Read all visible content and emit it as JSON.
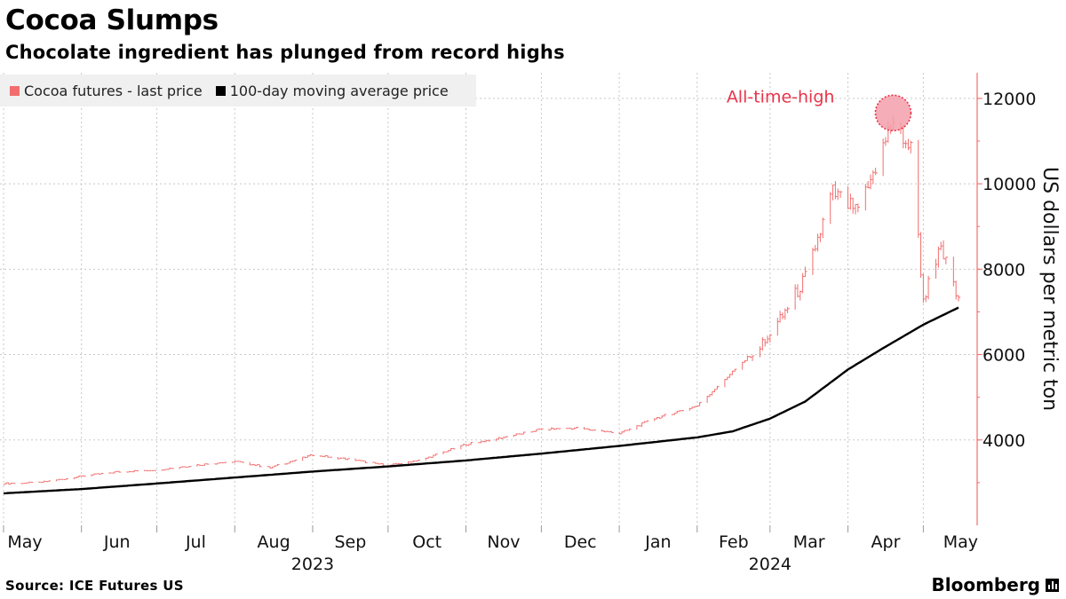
{
  "title": "Cocoa Slumps",
  "subtitle": "Chocolate ingredient has plunged from record highs",
  "legend": {
    "series1": "Cocoa futures - last price",
    "series2": "100-day moving average price"
  },
  "source": "Source: ICE Futures US",
  "brand": "Bloomberg",
  "colors": {
    "price": "#f26d6d",
    "average": "#000000",
    "annotation": "#e8334a",
    "grid": "#c8c8c8"
  },
  "chart_data": {
    "type": "line",
    "title": "Cocoa Slumps",
    "subtitle": "Chocolate ingredient has plunged from record highs",
    "xlabel": "",
    "ylabel": "US dollars per metric ton",
    "y_axis_position": "right",
    "ylim": [
      2000,
      12600
    ],
    "yticks": [
      4000,
      6000,
      8000,
      10000,
      12000
    ],
    "x_range": [
      "2023-05-01",
      "2024-05-15"
    ],
    "month_ticks": [
      {
        "label": "May",
        "date": "2023-05-01"
      },
      {
        "label": "Jun",
        "date": "2023-06-01"
      },
      {
        "label": "Jul",
        "date": "2023-07-01"
      },
      {
        "label": "Aug",
        "date": "2023-08-01"
      },
      {
        "label": "Sep",
        "date": "2023-09-01"
      },
      {
        "label": "Oct",
        "date": "2023-10-01"
      },
      {
        "label": "Nov",
        "date": "2023-11-01"
      },
      {
        "label": "Dec",
        "date": "2023-12-01"
      },
      {
        "label": "Jan",
        "date": "2024-01-01"
      },
      {
        "label": "Feb",
        "date": "2024-02-01"
      },
      {
        "label": "Mar",
        "date": "2024-03-01"
      },
      {
        "label": "Apr",
        "date": "2024-04-01"
      },
      {
        "label": "May",
        "date": "2024-05-01"
      }
    ],
    "year_labels": [
      {
        "label": "2023",
        "date": "2023-09-01"
      },
      {
        "label": "2024",
        "date": "2024-03-01"
      }
    ],
    "series": [
      {
        "name": "Cocoa futures - last price",
        "style": "daily range bars",
        "points": [
          [
            "2023-05-01",
            2980
          ],
          [
            "2023-05-15",
            3000
          ],
          [
            "2023-06-01",
            3150
          ],
          [
            "2023-06-15",
            3250
          ],
          [
            "2023-07-01",
            3300
          ],
          [
            "2023-07-15",
            3400
          ],
          [
            "2023-08-01",
            3500
          ],
          [
            "2023-08-15",
            3350
          ],
          [
            "2023-09-01",
            3650
          ],
          [
            "2023-09-15",
            3550
          ],
          [
            "2023-10-01",
            3400
          ],
          [
            "2023-10-15",
            3550
          ],
          [
            "2023-11-01",
            3900
          ],
          [
            "2023-11-15",
            4050
          ],
          [
            "2023-12-01",
            4250
          ],
          [
            "2023-12-15",
            4280
          ],
          [
            "2024-01-01",
            4150
          ],
          [
            "2024-01-15",
            4500
          ],
          [
            "2024-02-01",
            4800
          ],
          [
            "2024-02-15",
            5600
          ],
          [
            "2024-03-01",
            6400
          ],
          [
            "2024-03-15",
            7800
          ],
          [
            "2024-03-26",
            9800
          ],
          [
            "2024-04-05",
            9300
          ],
          [
            "2024-04-19",
            11500
          ],
          [
            "2024-04-26",
            10800
          ],
          [
            "2024-05-01",
            7300
          ],
          [
            "2024-05-08",
            8500
          ],
          [
            "2024-05-15",
            7200
          ]
        ]
      },
      {
        "name": "100-day moving average price",
        "style": "line",
        "points": [
          [
            "2023-05-01",
            2750
          ],
          [
            "2023-06-01",
            2850
          ],
          [
            "2023-07-01",
            2980
          ],
          [
            "2023-08-01",
            3120
          ],
          [
            "2023-09-01",
            3260
          ],
          [
            "2023-10-01",
            3380
          ],
          [
            "2023-11-01",
            3520
          ],
          [
            "2023-12-01",
            3680
          ],
          [
            "2024-01-01",
            3860
          ],
          [
            "2024-02-01",
            4060
          ],
          [
            "2024-02-15",
            4200
          ],
          [
            "2024-03-01",
            4500
          ],
          [
            "2024-03-15",
            4900
          ],
          [
            "2024-04-01",
            5650
          ],
          [
            "2024-04-15",
            6150
          ],
          [
            "2024-05-01",
            6700
          ],
          [
            "2024-05-15",
            7100
          ]
        ]
      }
    ],
    "annotations": [
      {
        "text": "All-time-high",
        "date": "2024-04-19",
        "value": 11700
      }
    ]
  }
}
